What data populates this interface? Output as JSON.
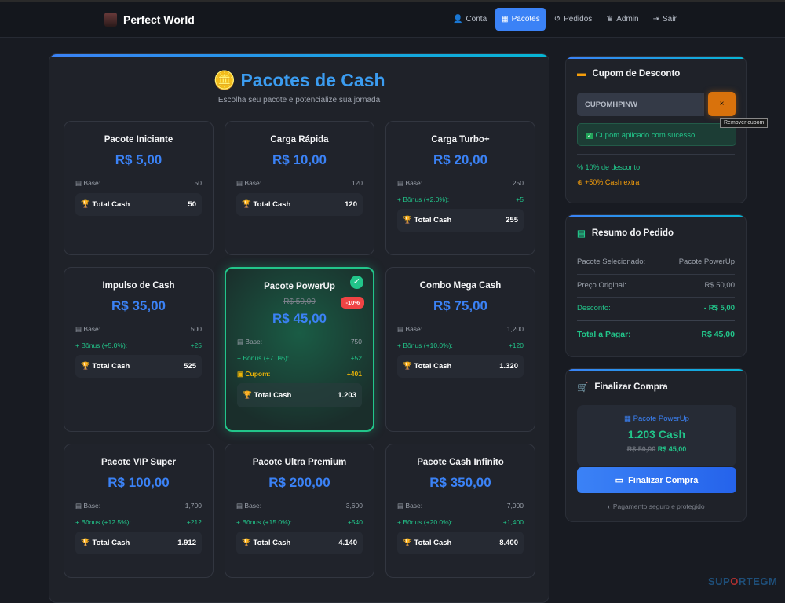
{
  "nav": {
    "brand": "Perfect World",
    "items": [
      {
        "label": "Conta",
        "icon": "user-icon",
        "glyph": "👤"
      },
      {
        "label": "Pacotes",
        "icon": "box-icon",
        "glyph": "▦",
        "active": true
      },
      {
        "label": "Pedidos",
        "icon": "history-icon",
        "glyph": "↺"
      },
      {
        "label": "Admin",
        "icon": "crown-icon",
        "glyph": "♛"
      },
      {
        "label": "Sair",
        "icon": "logout-icon",
        "glyph": "⇥"
      }
    ]
  },
  "main": {
    "title": "Pacotes de Cash",
    "subtitle": "Escolha seu pacote e potencialize sua jornada",
    "labels": {
      "base": "Base:",
      "coupon": "Cupom:",
      "total": "Total Cash"
    },
    "packages": [
      {
        "name": "Pacote Iniciante",
        "price": "R$ 5,00",
        "base": "50",
        "total": "50"
      },
      {
        "name": "Carga Rápida",
        "price": "R$ 10,00",
        "base": "120",
        "total": "120"
      },
      {
        "name": "Carga Turbo+",
        "price": "R$ 20,00",
        "base": "250",
        "bonus_label": "Bônus (+2.0%):",
        "bonus": "+5",
        "total": "255"
      },
      {
        "name": "Impulso de Cash",
        "price": "R$ 35,00",
        "base": "500",
        "bonus_label": "Bônus (+5.0%):",
        "bonus": "+25",
        "total": "525"
      },
      {
        "name": "Pacote PowerUp",
        "old_price": "R$ 50,00",
        "price": "R$ 45,00",
        "discount_badge": "-10%",
        "selected": true,
        "base": "750",
        "bonus_label": "Bônus (+7.0%):",
        "bonus": "+52",
        "coupon": "+401",
        "total": "1.203"
      },
      {
        "name": "Combo Mega Cash",
        "price": "R$ 75,00",
        "base": "1,200",
        "bonus_label": "Bônus (+10.0%):",
        "bonus": "+120",
        "total": "1.320"
      },
      {
        "name": "Pacote VIP Super",
        "price": "R$ 100,00",
        "base": "1,700",
        "bonus_label": "Bônus (+12.5%):",
        "bonus": "+212",
        "total": "1.912"
      },
      {
        "name": "Pacote Ultra Premium",
        "price": "R$ 200,00",
        "base": "3,600",
        "bonus_label": "Bônus (+15.0%):",
        "bonus": "+540",
        "total": "4.140"
      },
      {
        "name": "Pacote Cash Infinito",
        "price": "R$ 350,00",
        "base": "7,000",
        "bonus_label": "Bônus (+20.0%):",
        "bonus": "+1,400",
        "total": "8.400"
      }
    ]
  },
  "coupon": {
    "title": "Cupom de Desconto",
    "code": "CUPOMHPINW",
    "remove_label": "×",
    "tooltip": "Remover cupom",
    "success": "Cupom aplicado com sucesso!",
    "discount": "10% de desconto",
    "extra": "+50% Cash extra"
  },
  "summary": {
    "title": "Resumo do Pedido",
    "rows": [
      {
        "label": "Pacote Selecionado:",
        "value": "Pacote PowerUp"
      },
      {
        "label": "Preço Original:",
        "value": "R$ 50,00"
      },
      {
        "label": "Desconto:",
        "value": "- R$ 5,00"
      },
      {
        "label": "Total a Pagar:",
        "value": "R$ 45,00"
      }
    ]
  },
  "checkout": {
    "title": "Finalizar Compra",
    "package": "Pacote PowerUp",
    "cash": "1.203 Cash",
    "old_price": "R$ 50,00",
    "price": "R$ 45,00",
    "button": "Finalizar Compra",
    "secure": "Pagamento seguro e protegido"
  },
  "watermark": {
    "a": "SUP",
    "b": "O",
    "c": "RTEGM"
  },
  "colors": {
    "accent": "#3b82f6",
    "success": "#22c58a",
    "warning": "#d9720c",
    "danger": "#ef4444"
  }
}
